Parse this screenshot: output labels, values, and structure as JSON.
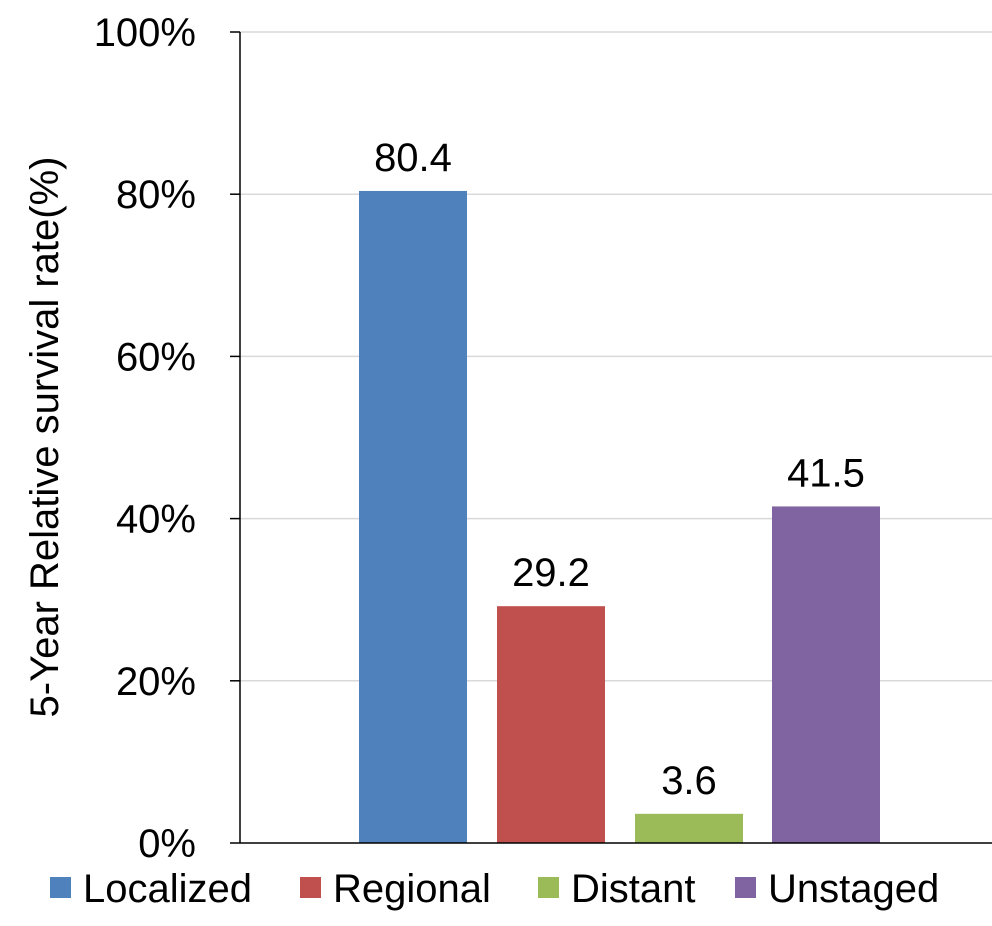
{
  "chart_data": {
    "type": "bar",
    "title": "",
    "xlabel": "",
    "ylabel": "5-Year Relative survival rate(%)",
    "categories": [
      "Localized",
      "Regional",
      "Distant",
      "Unstaged"
    ],
    "values": [
      80.4,
      29.2,
      3.6,
      41.5
    ],
    "value_labels": [
      "80.4",
      "29.2",
      "3.6",
      "41.5"
    ],
    "colors": [
      "#4f81bd",
      "#c0504d",
      "#9bbb59",
      "#8064a2"
    ],
    "ylim": [
      0,
      100
    ],
    "yticks": [
      0,
      20,
      40,
      60,
      80,
      100
    ],
    "ytick_labels": [
      "0%",
      "20%",
      "40%",
      "60%",
      "80%",
      "100%"
    ],
    "grid": true,
    "legend": "bottom",
    "legend_entries": [
      "Localized",
      "Regional",
      "Distant",
      "Unstaged"
    ]
  }
}
